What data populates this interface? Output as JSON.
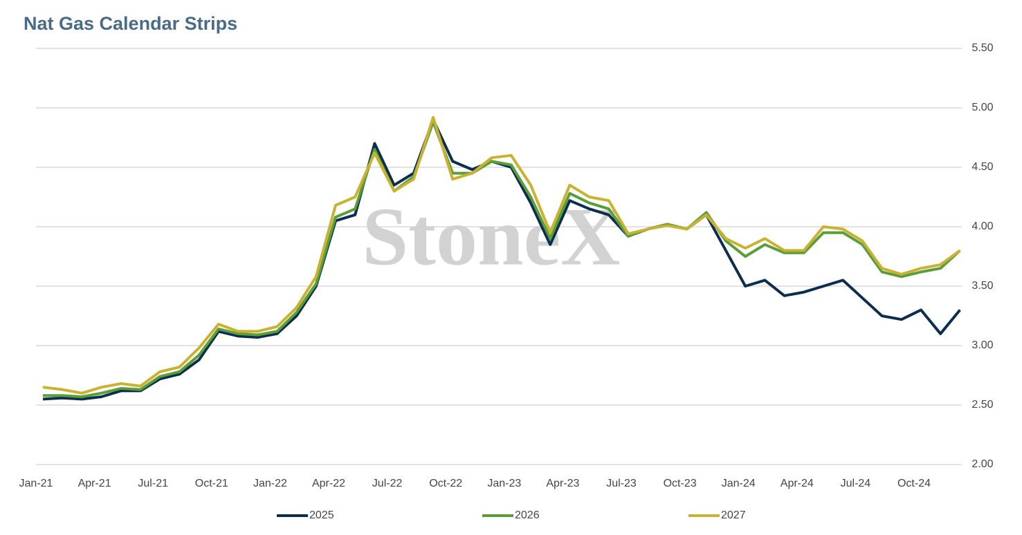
{
  "chart_data": {
    "type": "line",
    "title": "Nat Gas Calendar Strips",
    "watermark": "StoneX",
    "categories": [
      "Jan-21",
      null,
      null,
      "Apr-21",
      null,
      null,
      "Jul-21",
      null,
      null,
      "Oct-21",
      null,
      null,
      "Jan-22",
      null,
      null,
      "Apr-22",
      null,
      null,
      "Jul-22",
      null,
      null,
      "Oct-22",
      null,
      null,
      "Jan-23",
      null,
      null,
      "Apr-23",
      null,
      null,
      "Jul-23",
      null,
      null,
      "Oct-23",
      null,
      null,
      "Jan-24",
      null,
      null,
      "Apr-24",
      null,
      null,
      "Jul-24",
      null,
      null,
      "Oct-24",
      null,
      null
    ],
    "series": [
      {
        "name": "2025",
        "color": "#0d2d4f",
        "values": [
          2.55,
          2.56,
          2.55,
          2.57,
          2.62,
          2.62,
          2.72,
          2.76,
          2.88,
          3.12,
          3.08,
          3.07,
          3.1,
          3.25,
          3.5,
          4.05,
          4.1,
          4.7,
          4.35,
          4.45,
          4.9,
          4.55,
          4.48,
          4.55,
          4.5,
          4.2,
          3.85,
          4.22,
          4.15,
          4.1,
          3.92,
          3.98,
          4.02,
          3.98,
          4.1,
          3.8,
          3.5,
          3.55,
          3.42,
          3.45,
          3.5,
          3.55,
          3.4,
          3.25,
          3.22,
          3.3,
          3.1,
          3.3
        ]
      },
      {
        "name": "2026",
        "color": "#5a9e3a",
        "values": [
          2.58,
          2.58,
          2.57,
          2.6,
          2.64,
          2.63,
          2.74,
          2.78,
          2.92,
          3.14,
          3.1,
          3.09,
          3.12,
          3.28,
          3.52,
          4.08,
          4.15,
          4.65,
          4.3,
          4.42,
          4.88,
          4.45,
          4.45,
          4.55,
          4.52,
          4.25,
          3.9,
          4.28,
          4.2,
          4.15,
          3.92,
          3.98,
          4.02,
          3.98,
          4.12,
          3.88,
          3.75,
          3.85,
          3.78,
          3.78,
          3.95,
          3.95,
          3.85,
          3.62,
          3.58,
          3.62,
          3.65,
          3.8
        ]
      },
      {
        "name": "2027",
        "color": "#c9b232",
        "values": [
          2.65,
          2.63,
          2.6,
          2.65,
          2.68,
          2.66,
          2.78,
          2.82,
          2.98,
          3.18,
          3.12,
          3.12,
          3.16,
          3.32,
          3.58,
          4.18,
          4.25,
          4.62,
          4.3,
          4.4,
          4.92,
          4.4,
          4.45,
          4.58,
          4.6,
          4.35,
          3.95,
          4.35,
          4.25,
          4.22,
          3.94,
          3.98,
          4.01,
          3.98,
          4.1,
          3.9,
          3.82,
          3.9,
          3.8,
          3.8,
          4.0,
          3.98,
          3.88,
          3.65,
          3.6,
          3.65,
          3.68,
          3.8
        ]
      }
    ],
    "ylim": [
      2.0,
      5.5
    ],
    "yticks": [
      {
        "value": 2,
        "label": "2.00"
      },
      {
        "value": 2.5,
        "label": "2.50"
      },
      {
        "value": 3,
        "label": "3.00"
      },
      {
        "value": 3.5,
        "label": "3.50"
      },
      {
        "value": 4,
        "label": "4.00"
      },
      {
        "value": 4.5,
        "label": "4.50"
      },
      {
        "value": 5,
        "label": "5.00"
      },
      {
        "value": 5.5,
        "label": "5.50"
      }
    ],
    "grid": true,
    "legend": "bottom"
  }
}
